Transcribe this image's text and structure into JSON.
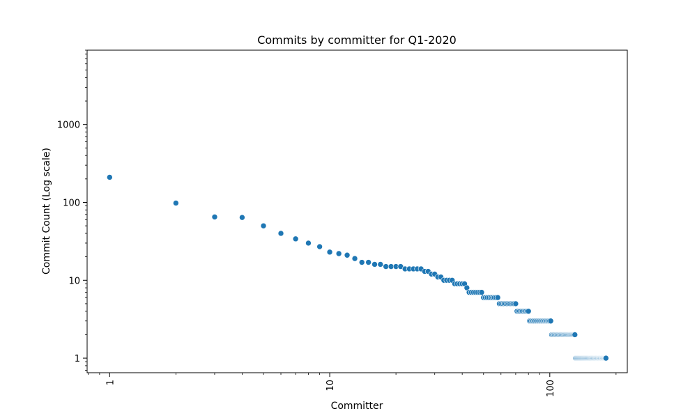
{
  "chart_data": {
    "type": "scatter",
    "title": "Commits by committer for Q1-2020",
    "xlabel": "Committer",
    "ylabel": "Commit Count (Log scale)",
    "xscale": "log",
    "yscale": "log",
    "xlim": [
      0.79,
      225
    ],
    "ylim": [
      0.65,
      9000
    ],
    "x_ticks": [
      1,
      10,
      100
    ],
    "x_tick_labels": [
      "1",
      "10",
      "100"
    ],
    "y_ticks": [
      1,
      10,
      100,
      1000
    ],
    "y_tick_labels": [
      "1",
      "10",
      "100",
      "1000"
    ],
    "grid": false,
    "legend": "none",
    "point_color": "#1f77b4",
    "point_edge_color": "#ffffff",
    "x": [
      1,
      2,
      3,
      4,
      5,
      6,
      7,
      8,
      9,
      10,
      11,
      12,
      13,
      14,
      15,
      16,
      17,
      18,
      19,
      20,
      21,
      22,
      23,
      24,
      25,
      26,
      27,
      28,
      29,
      30,
      31,
      32,
      33,
      34,
      35,
      36,
      37,
      38,
      39,
      40,
      41,
      42,
      43,
      44,
      45,
      46,
      47,
      48,
      49,
      50,
      51,
      52,
      53,
      54,
      55,
      56,
      57,
      58,
      59,
      60,
      61,
      62,
      63,
      64,
      65,
      66,
      67,
      68,
      69,
      70,
      71,
      72,
      73,
      74,
      75,
      76,
      77,
      78,
      79,
      80,
      81,
      82,
      83,
      84,
      85,
      86,
      87,
      88,
      89,
      90,
      91,
      92,
      93,
      94,
      95,
      96,
      97,
      98,
      99,
      100,
      101,
      102,
      103,
      104,
      105,
      106,
      107,
      108,
      109,
      110,
      111,
      112,
      113,
      114,
      115,
      116,
      117,
      118,
      119,
      120,
      121,
      122,
      123,
      124,
      125,
      126,
      127,
      128,
      129,
      130,
      131,
      132,
      133,
      134,
      135,
      136,
      137,
      138,
      139,
      140,
      141,
      142,
      143,
      144,
      145,
      146,
      147,
      148,
      149,
      150,
      151,
      152,
      153,
      154,
      155,
      156,
      157,
      158,
      159,
      160,
      161,
      162,
      163,
      164,
      165,
      166,
      167,
      168,
      169,
      170,
      171,
      172,
      173,
      174,
      175,
      176,
      177,
      178,
      179,
      180
    ],
    "y": [
      210,
      98,
      65,
      64,
      50,
      40,
      34,
      30,
      27,
      23,
      22,
      21,
      19,
      17,
      17,
      16,
      16,
      15,
      15,
      15,
      15,
      14,
      14,
      14,
      14,
      14,
      13,
      13,
      12,
      12,
      11,
      11,
      10,
      10,
      10,
      10,
      9,
      9,
      9,
      9,
      9,
      8,
      7,
      7,
      7,
      7,
      7,
      7,
      7,
      6,
      6,
      6,
      6,
      6,
      6,
      6,
      6,
      6,
      5,
      5,
      5,
      5,
      5,
      5,
      5,
      5,
      5,
      5,
      5,
      5,
      4,
      4,
      4,
      4,
      4,
      4,
      4,
      4,
      4,
      4,
      3,
      3,
      3,
      3,
      3,
      3,
      3,
      3,
      3,
      3,
      3,
      3,
      3,
      3,
      3,
      3,
      3,
      3,
      3,
      3,
      3,
      2,
      2,
      2,
      2,
      2,
      2,
      2,
      2,
      2,
      2,
      2,
      2,
      2,
      2,
      2,
      2,
      2,
      2,
      2,
      2,
      2,
      2,
      2,
      2,
      2,
      2,
      2,
      2,
      2,
      1,
      1,
      1,
      1,
      1,
      1,
      1,
      1,
      1,
      1,
      1,
      1,
      1,
      1,
      1,
      1,
      1,
      1,
      1,
      1,
      1,
      1,
      1,
      1,
      1,
      1,
      1,
      1,
      1,
      1,
      1,
      1,
      1,
      1,
      1,
      1,
      1,
      1,
      1,
      1,
      1,
      1,
      1,
      1,
      1,
      1,
      1,
      1,
      1,
      1
    ]
  }
}
